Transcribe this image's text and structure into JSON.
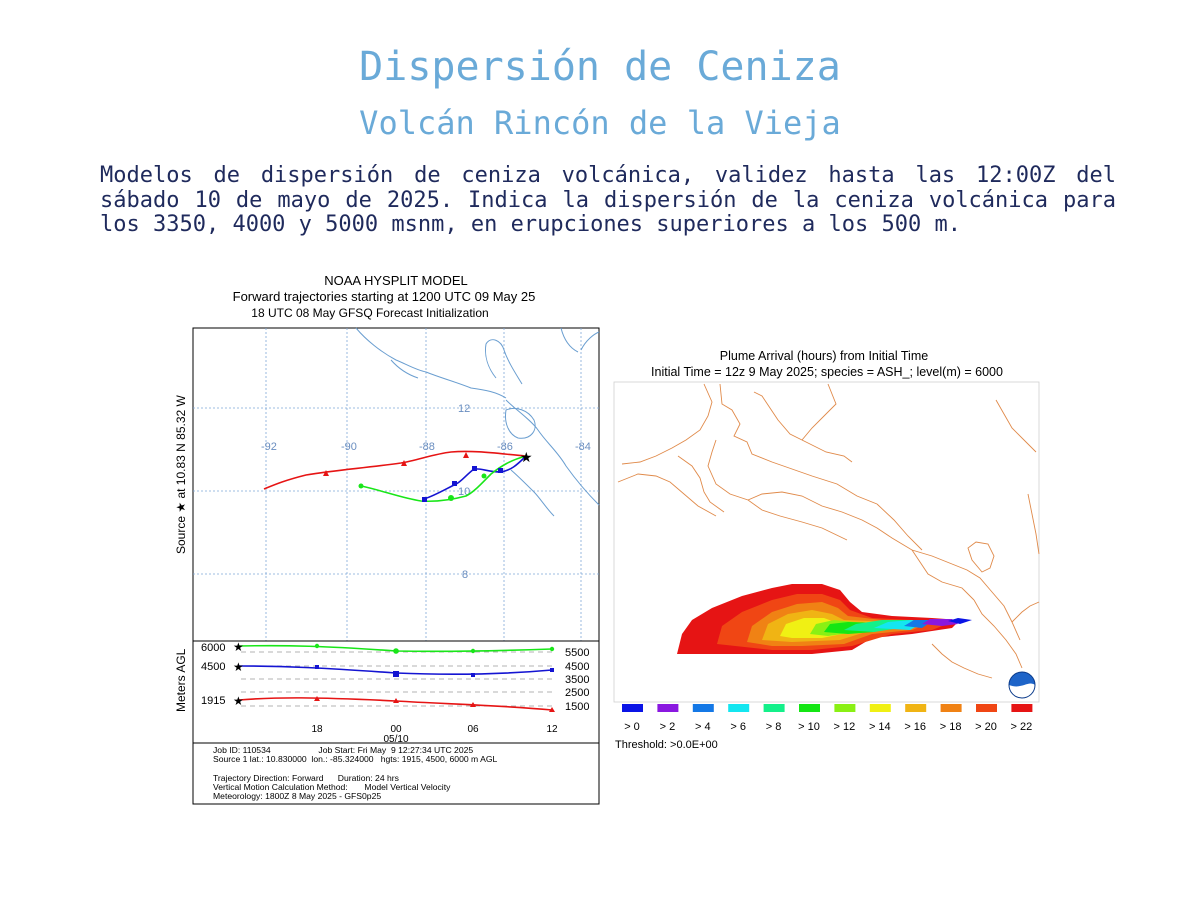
{
  "page": {
    "title": "Dispersión de Ceniza",
    "subtitle": "Volcán Rincón de la Vieja",
    "description": "Modelos de dispersión de ceniza volcánica, validez hasta las 12:00Z del sábado 10 de mayo de 2025. Indica la dispersión de la ceniza volcánica para los 3350, 4000 y 5000 msnm, en erupciones superiores a los 500 m."
  },
  "left_figure": {
    "header": [
      "NOAA HYSPLIT MODEL",
      "Forward trajectories starting at 1200 UTC 09 May 25",
      "18 UTC 08 May    GFSQ  Forecast Initialization"
    ],
    "source_label": "Source ★  at   10.83 N   85.32 W",
    "lon_labels": [
      "-92",
      "-90",
      "-88",
      "-86",
      "-84"
    ],
    "lat_labels": [
      "12",
      "10",
      "8"
    ],
    "height_axis_label": "Meters AGL",
    "left_heights": [
      "6000",
      "4500",
      "1915"
    ],
    "right_heights": [
      "5500",
      "4500",
      "3500",
      "2500",
      "1500"
    ],
    "time_labels": [
      "18",
      "00",
      "06",
      "12"
    ],
    "date_label": "05/10",
    "colors": {
      "high": "#19e619",
      "mid": "#1414d2",
      "low": "#e61414",
      "geo": "#6a9ed0",
      "grid": "#7fa8d8"
    },
    "footer": [
      "Job ID: 110534                    Job Start: Fri May  9 12:27:34 UTC 2025",
      "Source 1 lat.: 10.830000  lon.: -85.324000   hgts: 1915, 4500, 6000 m AGL",
      "",
      "Trajectory Direction: Forward      Duration: 24 hrs",
      "Vertical Motion Calculation Method:       Model Vertical Velocity",
      "Meteorology: 1800Z 8 May 2025 - GFS0p25"
    ]
  },
  "right_figure": {
    "header": [
      "Plume Arrival (hours) from Initial Time",
      "Initial Time = 12z  9 May 2025;  species = ASH_;  level(m) =  6000"
    ],
    "legend_labels": [
      "> 0",
      "> 2",
      "> 4",
      "> 6",
      "> 8",
      "> 10",
      "> 12",
      "> 14",
      "> 16",
      "> 18",
      "> 20",
      "> 22"
    ],
    "legend_colors": [
      "#0a14e6",
      "#8a18e0",
      "#1478e6",
      "#14e6f0",
      "#14f08a",
      "#14e614",
      "#8af014",
      "#f0f014",
      "#f0b414",
      "#f08214",
      "#f04614",
      "#e61414"
    ],
    "threshold": "Threshold: >0.0E+00",
    "border_color": "#e08a4a"
  }
}
